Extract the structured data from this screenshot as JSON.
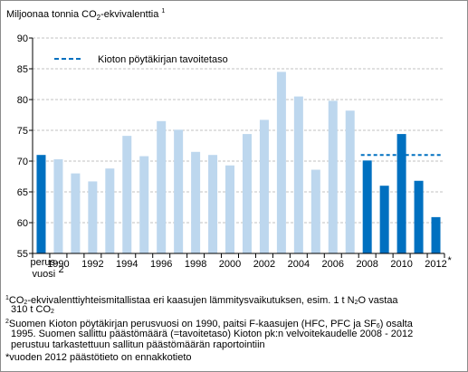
{
  "chart_data": {
    "type": "bar",
    "title_main": "Miljoonaa tonnia CO",
    "title_sub": "2",
    "title_tail": "-ekvivalenttia",
    "title_note": "1",
    "ylim": [
      55,
      90
    ],
    "yticks": [
      55,
      60,
      65,
      70,
      75,
      80,
      85,
      90
    ],
    "grid": true,
    "categories": [
      "perusvuosi",
      "1990",
      "1991",
      "1992",
      "1993",
      "1994",
      "1995",
      "1996",
      "1997",
      "1998",
      "1999",
      "2000",
      "2001",
      "2002",
      "2003",
      "2004",
      "2005",
      "2006",
      "2007",
      "2008",
      "2009",
      "2010",
      "2011",
      "2012"
    ],
    "values": [
      71.0,
      70.3,
      68.0,
      66.7,
      68.8,
      74.1,
      70.8,
      76.5,
      75.1,
      71.5,
      71.0,
      69.3,
      74.4,
      76.7,
      84.5,
      80.5,
      68.6,
      79.8,
      78.2,
      70.1,
      66.0,
      74.4,
      66.8,
      60.9
    ],
    "bar_groups": [
      "base",
      "history",
      "history",
      "history",
      "history",
      "history",
      "history",
      "history",
      "history",
      "history",
      "history",
      "history",
      "history",
      "history",
      "history",
      "history",
      "history",
      "history",
      "history",
      "period",
      "period",
      "period",
      "period",
      "period"
    ],
    "xtick_labels": [
      "1990",
      "1992",
      "1994",
      "1996",
      "1998",
      "2000",
      "2002",
      "2004",
      "2006",
      "2008",
      "2010",
      "2012"
    ],
    "base_label_line1": "perus-",
    "base_label_line2": "vuosi",
    "base_label_note": "2",
    "last_label_note": "*",
    "kyoto_target": 71.0,
    "kyoto_range": [
      "2008",
      "2012"
    ],
    "legend_label": "Kioton pöytäkirjan tavoitetaso",
    "legend_position": "top-left",
    "colors": {
      "base": "#0070c0",
      "history": "#bdd7ee",
      "period": "#0070c0",
      "target_line": "#0070c0",
      "grid": "#c0c0c0"
    }
  },
  "footnotes": {
    "f1_mark": "1",
    "f1_a": "CO",
    "f1_b": "-ekvivalenttiyhteismitallistaa eri kaasujen lämmitysvaikutuksen, esim. 1 t N",
    "f1_c": "O vastaa",
    "f1_line2_a": "310 t CO",
    "f2_mark": "2",
    "f2_line1_a": "Suomen Kioton pöytäkirjan perusvuosi on 1990, paitsi F-kaasujen (HFC, PFC ja SF",
    "f2_line1_sub": "6",
    "f2_line1_b": ") osalta",
    "f2_line2": "1995. Suomen sallittu päästömäärä (=tavoitetaso) Kioton pk:n velvoitekaudelle 2008 - 2012",
    "f2_line3": "perustuu tarkastettuun sallitun päästömäärän raportointiin",
    "f3": "*vuoden 2012 päästötieto on ennakkotieto",
    "sub2": "2"
  }
}
